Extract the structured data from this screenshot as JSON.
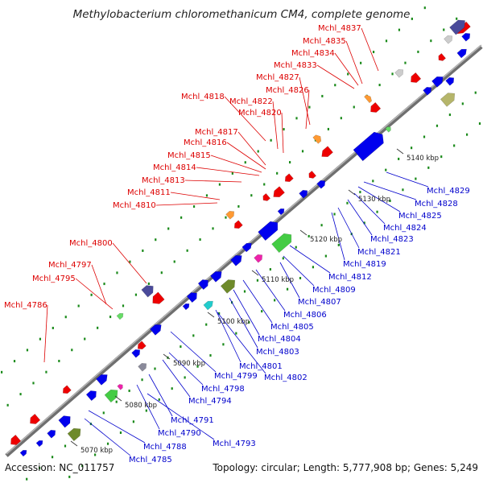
{
  "title": "Methylobacterium chloromethanicum CM4, complete genome",
  "footer": {
    "accession": "Accession: NC_011757",
    "summary": "Topology: circular; Length: 5,777,908 bp; Genes: 5,249"
  },
  "colors": {
    "backbone": "#8c8c8c",
    "reverse_label": "#dd0000",
    "forward_label": "#0000cc",
    "reverse_gene": "#ee0000",
    "forward_gene": "#0000ee",
    "dots": "#1a8a1a"
  },
  "ruler": [
    {
      "label": "5070 kbp"
    },
    {
      "label": "5080 kbp"
    },
    {
      "label": "5090 kbp"
    },
    {
      "label": "5100 kbp"
    },
    {
      "label": "5110 kbp"
    },
    {
      "label": "5120 kbp"
    },
    {
      "label": "5130 kbp"
    },
    {
      "label": "5140 kbp"
    }
  ],
  "reverse_labels": [
    "Mchl_4837",
    "Mchl_4835",
    "Mchl_4834",
    "Mchl_4833",
    "Mchl_4827",
    "Mchl_4826",
    "Mchl_4818",
    "Mchl_4822",
    "Mchl_4820",
    "Mchl_4817",
    "Mchl_4816",
    "Mchl_4815",
    "Mchl_4814",
    "Mchl_4813",
    "Mchl_4811",
    "Mchl_4810",
    "Mchl_4800",
    "Mchl_4797",
    "Mchl_4795",
    "Mchl_4786"
  ],
  "forward_labels": [
    "Mchl_4829",
    "Mchl_4828",
    "Mchl_4825",
    "Mchl_4824",
    "Mchl_4823",
    "Mchl_4821",
    "Mchl_4819",
    "Mchl_4812",
    "Mchl_4809",
    "Mchl_4807",
    "Mchl_4806",
    "Mchl_4805",
    "Mchl_4804",
    "Mchl_4803",
    "Mchl_4801",
    "Mchl_4802",
    "Mchl_4799",
    "Mchl_4798",
    "Mchl_4794",
    "Mchl_4791",
    "Mchl_4790",
    "Mchl_4793",
    "Mchl_4788",
    "Mchl_4785"
  ]
}
